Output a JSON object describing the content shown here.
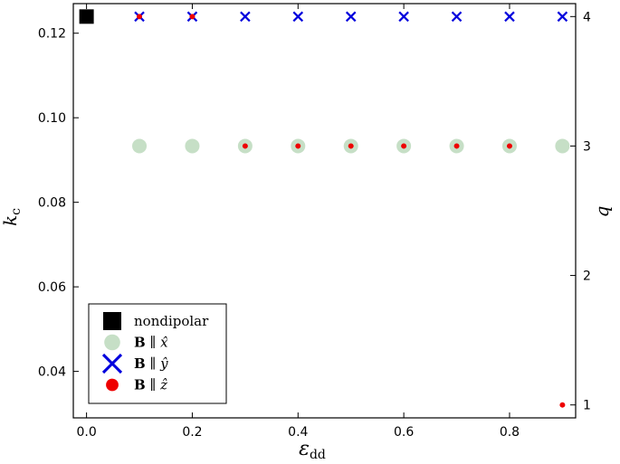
{
  "chart_data": {
    "type": "scatter",
    "xlabel": "ε",
    "xlabel_sub": "dd",
    "ylabel_left": "k",
    "ylabel_left_sub": "c",
    "ylabel_right": "q",
    "xlim": [
      -0.025,
      0.925
    ],
    "ylim_left": [
      0.029,
      0.127
    ],
    "ylim_right": [
      0.9,
      4.1
    ],
    "x_ticks": [
      "0.0",
      "0.2",
      "0.4",
      "0.6",
      "0.8"
    ],
    "x_tick_values": [
      0.0,
      0.2,
      0.4,
      0.6,
      0.8
    ],
    "y_left_ticks": [
      "0.04",
      "0.06",
      "0.08",
      "0.10",
      "0.12"
    ],
    "y_left_tick_values": [
      0.04,
      0.06,
      0.08,
      0.1,
      0.12
    ],
    "y_right_ticks": [
      "1",
      "2",
      "3",
      "4"
    ],
    "y_right_tick_values": [
      1,
      2,
      3,
      4
    ],
    "grid": false,
    "legend_placement": "bottom-left",
    "series": [
      {
        "name": "nondipolar",
        "label_parts": [
          "nondipolar"
        ],
        "marker": "square",
        "color": "#000000",
        "axis": "right",
        "x": [
          0.0
        ],
        "y": [
          4
        ]
      },
      {
        "name": "B ∥ x̂",
        "label_parts": [
          "B",
          " ∥ ",
          "x̂"
        ],
        "marker": "circle-large",
        "color": "#c6dfc6",
        "axis": "right",
        "x": [
          0.1,
          0.2,
          0.3,
          0.4,
          0.5,
          0.6,
          0.7,
          0.8,
          0.9
        ],
        "y": [
          3,
          3,
          3,
          3,
          3,
          3,
          3,
          3,
          3
        ]
      },
      {
        "name": "B ∥ ŷ",
        "label_parts": [
          "B",
          " ∥ ",
          "ŷ"
        ],
        "marker": "x",
        "color": "#0000dd",
        "axis": "right",
        "x": [
          0.1,
          0.2,
          0.3,
          0.4,
          0.5,
          0.6,
          0.7,
          0.8,
          0.9
        ],
        "y": [
          4,
          4,
          4,
          4,
          4,
          4,
          4,
          4,
          4
        ]
      },
      {
        "name": "B ∥ ẑ",
        "label_parts": [
          "B",
          " ∥ ",
          "ẑ"
        ],
        "marker": "dot",
        "color": "#ee0000",
        "axis": "right",
        "x": [
          0.1,
          0.2,
          0.3,
          0.4,
          0.5,
          0.6,
          0.7,
          0.8,
          0.9
        ],
        "y": [
          4,
          4,
          3,
          3,
          3,
          3,
          3,
          3,
          1
        ]
      }
    ]
  }
}
